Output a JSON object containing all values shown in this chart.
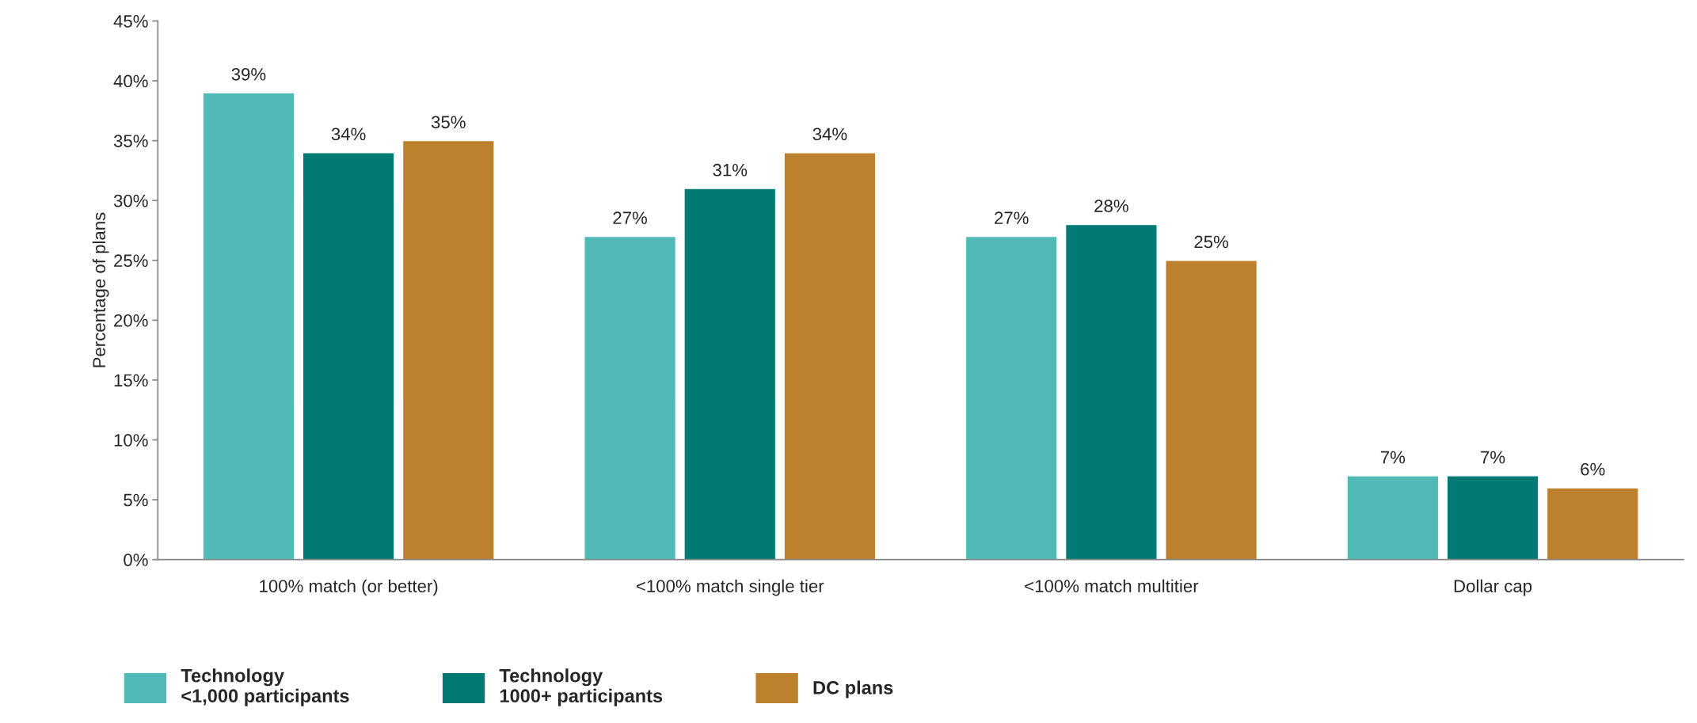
{
  "chart_data": {
    "type": "bar",
    "ylabel": "Percentage of plans",
    "categories": [
      "100% match (or better)",
      "<100% match single tier",
      "<100% match multitier",
      "Dollar cap"
    ],
    "series": [
      {
        "name": "Technology\n<1,000 participants",
        "color": "#52bab6",
        "values": [
          39,
          27,
          27,
          7
        ],
        "value_labels": [
          "39%",
          "27%",
          "27%",
          "7%"
        ]
      },
      {
        "name": "Technology\n1000+ participants",
        "color": "#007a72",
        "values": [
          34,
          31,
          28,
          7
        ],
        "value_labels": [
          "34%",
          "31%",
          "28%",
          "7%"
        ]
      },
      {
        "name": "DC plans",
        "color": "#bd812e",
        "values": [
          35,
          34,
          25,
          6
        ],
        "value_labels": [
          "35%",
          "34%",
          "25%",
          "6%"
        ]
      }
    ],
    "ylim": [
      0,
      45
    ],
    "yticks": [
      {
        "value": 0,
        "label": "0%"
      },
      {
        "value": 5,
        "label": "5%"
      },
      {
        "value": 10,
        "label": "10%"
      },
      {
        "value": 15,
        "label": "15%"
      },
      {
        "value": 20,
        "label": "20%"
      },
      {
        "value": 25,
        "label": "25%"
      },
      {
        "value": 30,
        "label": "30%"
      },
      {
        "value": 35,
        "label": "35%"
      },
      {
        "value": 40,
        "label": "40%"
      },
      {
        "value": 45,
        "label": "45%"
      }
    ],
    "grid": false,
    "legend": "bottom"
  }
}
